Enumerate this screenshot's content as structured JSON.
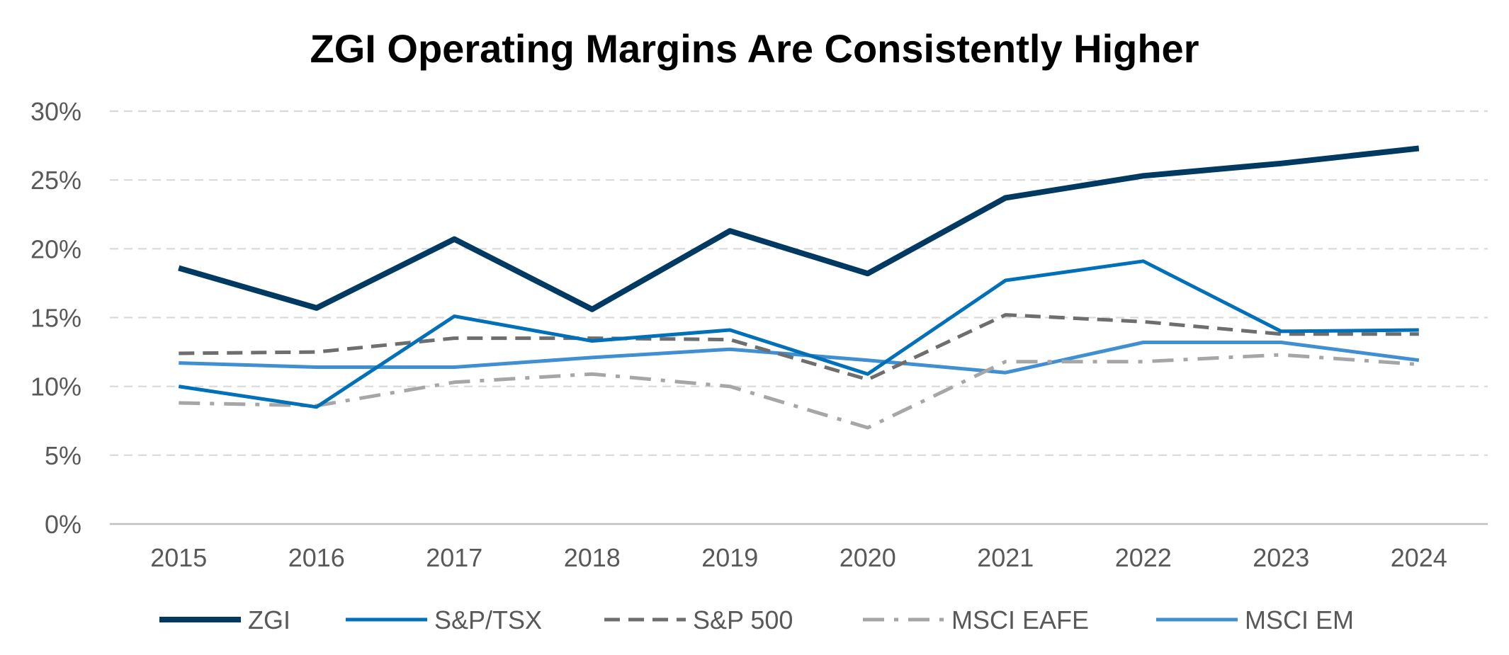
{
  "chart_data": {
    "type": "line",
    "title": "ZGI Operating Margins Are Consistently Higher",
    "xlabel": "",
    "ylabel": "",
    "categories": [
      "2015",
      "2016",
      "2017",
      "2018",
      "2019",
      "2020",
      "2021",
      "2022",
      "2023",
      "2024"
    ],
    "y_ticks": [
      "0%",
      "5%",
      "10%",
      "15%",
      "20%",
      "25%",
      "30%"
    ],
    "ylim": [
      0,
      30
    ],
    "y_unit": "%",
    "grid": true,
    "legend_position": "bottom",
    "series": [
      {
        "name": "ZGI",
        "values": [
          18.6,
          15.7,
          20.7,
          15.6,
          21.3,
          18.2,
          23.7,
          25.3,
          26.2,
          27.3
        ],
        "color": "#003a63",
        "style": "solid-thick"
      },
      {
        "name": "S&P/TSX",
        "values": [
          10.0,
          8.5,
          15.1,
          13.3,
          14.1,
          10.9,
          17.7,
          19.1,
          14.0,
          14.1
        ],
        "color": "#0070b8",
        "style": "solid"
      },
      {
        "name": "S&P 500",
        "values": [
          12.4,
          12.5,
          13.5,
          13.5,
          13.4,
          10.5,
          15.2,
          14.7,
          13.8,
          13.8
        ],
        "color": "#6e6e6e",
        "style": "dash"
      },
      {
        "name": "MSCI EAFE",
        "values": [
          8.8,
          8.6,
          10.3,
          10.9,
          10.0,
          7.0,
          11.8,
          11.8,
          12.3,
          11.6
        ],
        "color": "#a6a6a6",
        "style": "dash-dot"
      },
      {
        "name": "MSCI EM",
        "values": [
          11.7,
          11.4,
          11.4,
          12.1,
          12.7,
          11.9,
          11.0,
          13.2,
          13.2,
          11.9
        ],
        "color": "#3f8fd1",
        "style": "solid"
      }
    ]
  }
}
